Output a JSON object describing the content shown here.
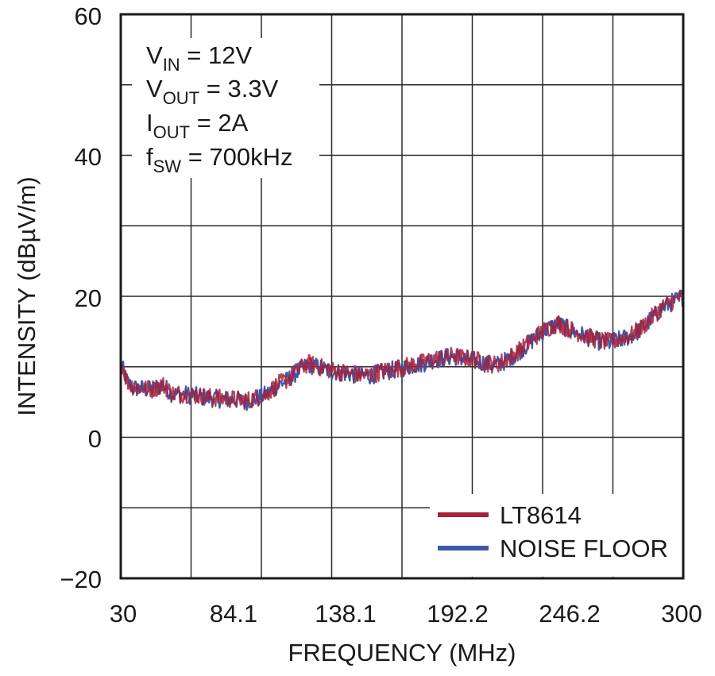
{
  "chart_data": {
    "type": "line",
    "xlabel": "FREQUENCY (MHz)",
    "ylabel": "INTENSITY (dBµV/m)",
    "xlim": [
      30,
      300
    ],
    "ylim": [
      -20,
      60
    ],
    "x_ticks": [
      "30",
      "84.1",
      "138.1",
      "192.2",
      "246.2",
      "300"
    ],
    "y_ticks": [
      "60",
      "40",
      "20",
      "0",
      "−20"
    ],
    "grid": true,
    "legend_position": "bottom-right",
    "annotations": [
      {
        "main": "V",
        "sub": "IN",
        "rest": " = 12V"
      },
      {
        "main": "V",
        "sub": "OUT",
        "rest": " = 3.3V"
      },
      {
        "main": "I",
        "sub": "OUT",
        "rest": " = 2A"
      },
      {
        "main": "f",
        "sub": "SW",
        "rest": " = 700kHz"
      }
    ],
    "series": [
      {
        "name": "LT8614",
        "color": "#a8203a",
        "x": [
          30,
          33,
          36,
          40,
          45,
          50,
          55,
          60,
          65,
          70,
          75,
          80,
          85,
          90,
          95,
          100,
          105,
          110,
          115,
          120,
          125,
          130,
          135,
          140,
          145,
          150,
          155,
          160,
          165,
          170,
          175,
          180,
          185,
          190,
          195,
          200,
          205,
          210,
          215,
          220,
          225,
          230,
          235,
          240,
          245,
          250,
          255,
          260,
          265,
          270,
          275,
          280,
          285,
          290,
          295,
          300
        ],
        "y": [
          11,
          8,
          7.2,
          7,
          6.8,
          7.5,
          6.2,
          6.2,
          6,
          5.8,
          5.6,
          5.5,
          5.4,
          5.2,
          5.6,
          6.2,
          7.4,
          8.2,
          9.5,
          10.5,
          10,
          9.6,
          9.3,
          9.1,
          8.8,
          8.9,
          9.3,
          9.6,
          9.9,
          10.3,
          10.6,
          11.1,
          11.3,
          11.6,
          11.2,
          11,
          10.6,
          10.3,
          11,
          12,
          13.2,
          14.5,
          15.5,
          16.2,
          15.4,
          14.8,
          14.2,
          13.7,
          13.5,
          14,
          14.5,
          15.5,
          17,
          18.5,
          19.3,
          20
        ]
      },
      {
        "name": "NOISE FLOOR",
        "color": "#3c58a8",
        "x": [
          30,
          33,
          36,
          40,
          45,
          50,
          55,
          60,
          65,
          70,
          75,
          80,
          85,
          90,
          95,
          100,
          105,
          110,
          115,
          120,
          125,
          130,
          135,
          140,
          145,
          150,
          155,
          160,
          165,
          170,
          175,
          180,
          185,
          190,
          195,
          200,
          205,
          210,
          215,
          220,
          225,
          230,
          235,
          240,
          245,
          250,
          255,
          260,
          265,
          270,
          275,
          280,
          285,
          290,
          295,
          300
        ],
        "y": [
          10.5,
          7.8,
          7,
          6.9,
          6.7,
          7.4,
          6.1,
          6.1,
          5.9,
          5.7,
          5.5,
          5.4,
          5.3,
          5.1,
          5.5,
          6.1,
          7.3,
          8.1,
          9.4,
          10.3,
          9.9,
          9.5,
          9.2,
          9,
          8.7,
          8.8,
          9.2,
          9.5,
          9.8,
          10.2,
          10.5,
          11,
          11.2,
          11.5,
          11.1,
          10.9,
          10.5,
          10.2,
          10.9,
          11.9,
          13.1,
          14.4,
          15.4,
          16.1,
          15.3,
          14.7,
          14.1,
          13.6,
          13.4,
          13.9,
          14.4,
          15.4,
          16.9,
          18.4,
          19.2,
          19.9
        ]
      }
    ]
  }
}
